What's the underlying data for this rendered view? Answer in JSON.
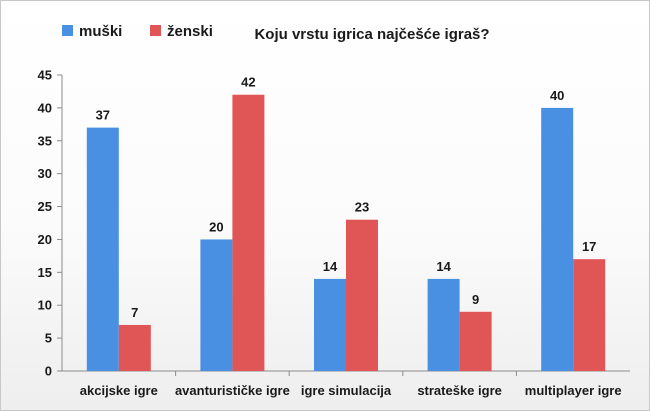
{
  "chart_data": {
    "type": "bar",
    "title": "Koju vrstu igrica najčešće igraš?",
    "categories": [
      "akcijske igre",
      "avanturističke igre",
      "igre simulacija",
      "strateške igre",
      "multiplayer igre"
    ],
    "series": [
      {
        "name": "muški",
        "color": "#4a90e2",
        "values": [
          37,
          20,
          14,
          14,
          40
        ]
      },
      {
        "name": "ženski",
        "color": "#e05555",
        "values": [
          7,
          42,
          23,
          9,
          17
        ]
      }
    ],
    "ylim": [
      0,
      45
    ],
    "yticks": [
      0,
      5,
      10,
      15,
      20,
      25,
      30,
      35,
      40,
      45
    ],
    "grid": false,
    "legend": "top-left"
  }
}
